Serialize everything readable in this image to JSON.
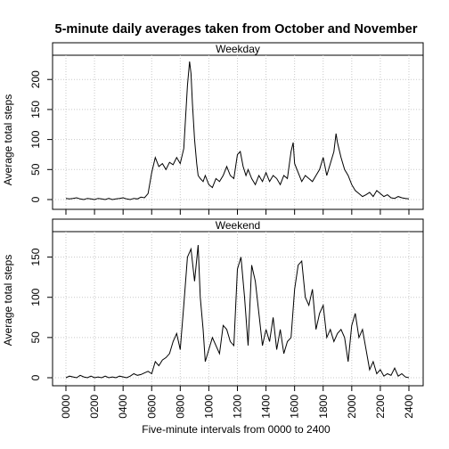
{
  "chart_data": {
    "type": "line",
    "title": "5-minute daily averages taken from October and November",
    "xlabel": "Five-minute intervals from 0000 to 2400",
    "ylabel": "Average total steps",
    "xlim": [
      0,
      2400
    ],
    "x_ticks": [
      "0000",
      "0200",
      "0400",
      "0600",
      "0800",
      "1000",
      "1200",
      "1400",
      "1600",
      "1800",
      "2000",
      "2200",
      "2400"
    ],
    "grid": true,
    "panels": [
      {
        "name": "Weekday",
        "ylim": [
          0,
          230
        ],
        "y_ticks": [
          "0",
          "50",
          "100",
          "150",
          "200"
        ],
        "x": [
          0,
          25,
          50,
          75,
          100,
          125,
          150,
          175,
          200,
          225,
          250,
          275,
          300,
          325,
          350,
          375,
          400,
          425,
          450,
          475,
          500,
          525,
          550,
          575,
          600,
          625,
          650,
          675,
          700,
          725,
          750,
          775,
          800,
          825,
          850,
          865,
          875,
          885,
          900,
          915,
          925,
          940,
          960,
          975,
          1000,
          1025,
          1050,
          1075,
          1100,
          1125,
          1150,
          1175,
          1200,
          1220,
          1240,
          1260,
          1275,
          1300,
          1325,
          1350,
          1375,
          1400,
          1425,
          1450,
          1475,
          1500,
          1525,
          1550,
          1575,
          1590,
          1600,
          1625,
          1650,
          1675,
          1700,
          1725,
          1750,
          1775,
          1800,
          1825,
          1850,
          1875,
          1890,
          1900,
          1925,
          1950,
          1975,
          2000,
          2025,
          2050,
          2075,
          2100,
          2125,
          2150,
          2175,
          2200,
          2225,
          2250,
          2275,
          2300,
          2325,
          2350,
          2375,
          2400
        ],
        "y": [
          2,
          1,
          2,
          3,
          1,
          0,
          2,
          1,
          0,
          2,
          1,
          0,
          2,
          0,
          1,
          2,
          3,
          1,
          0,
          2,
          1,
          4,
          3,
          10,
          45,
          70,
          55,
          60,
          50,
          62,
          58,
          70,
          60,
          85,
          190,
          230,
          210,
          160,
          100,
          60,
          40,
          35,
          30,
          40,
          25,
          20,
          35,
          30,
          40,
          55,
          40,
          35,
          75,
          80,
          55,
          40,
          50,
          35,
          25,
          40,
          30,
          45,
          30,
          40,
          35,
          25,
          40,
          35,
          80,
          95,
          60,
          45,
          30,
          40,
          35,
          30,
          40,
          50,
          70,
          40,
          60,
          80,
          110,
          95,
          70,
          50,
          40,
          25,
          15,
          10,
          5,
          8,
          12,
          5,
          15,
          10,
          5,
          8,
          3,
          2,
          5,
          3,
          2,
          1
        ]
      },
      {
        "name": "Weekend",
        "ylim": [
          0,
          175
        ],
        "y_ticks": [
          "0",
          "50",
          "100",
          "150"
        ],
        "x": [
          0,
          25,
          50,
          75,
          100,
          125,
          150,
          175,
          200,
          225,
          250,
          275,
          300,
          325,
          350,
          375,
          400,
          425,
          450,
          475,
          500,
          525,
          550,
          575,
          600,
          625,
          650,
          675,
          700,
          725,
          750,
          775,
          800,
          825,
          850,
          875,
          900,
          925,
          940,
          960,
          975,
          1000,
          1025,
          1050,
          1075,
          1100,
          1125,
          1150,
          1175,
          1200,
          1225,
          1250,
          1275,
          1300,
          1325,
          1350,
          1375,
          1400,
          1425,
          1450,
          1475,
          1500,
          1525,
          1550,
          1575,
          1600,
          1625,
          1650,
          1675,
          1700,
          1725,
          1750,
          1775,
          1800,
          1825,
          1850,
          1875,
          1900,
          1925,
          1950,
          1975,
          2000,
          2025,
          2050,
          2075,
          2100,
          2125,
          2150,
          2175,
          2200,
          2225,
          2250,
          2275,
          2300,
          2325,
          2350,
          2375,
          2400
        ],
        "y": [
          0,
          2,
          1,
          0,
          3,
          1,
          0,
          2,
          0,
          1,
          0,
          2,
          0,
          1,
          0,
          2,
          1,
          0,
          2,
          5,
          3,
          4,
          6,
          8,
          5,
          20,
          15,
          22,
          25,
          30,
          45,
          55,
          35,
          90,
          150,
          160,
          120,
          165,
          100,
          60,
          20,
          35,
          50,
          40,
          30,
          65,
          60,
          45,
          40,
          135,
          150,
          100,
          40,
          140,
          120,
          80,
          40,
          60,
          45,
          75,
          35,
          60,
          30,
          45,
          50,
          110,
          140,
          145,
          100,
          90,
          110,
          60,
          80,
          90,
          50,
          60,
          45,
          55,
          60,
          50,
          20,
          65,
          80,
          50,
          60,
          35,
          10,
          20,
          5,
          10,
          2,
          5,
          3,
          12,
          2,
          5,
          1,
          0
        ]
      }
    ]
  }
}
